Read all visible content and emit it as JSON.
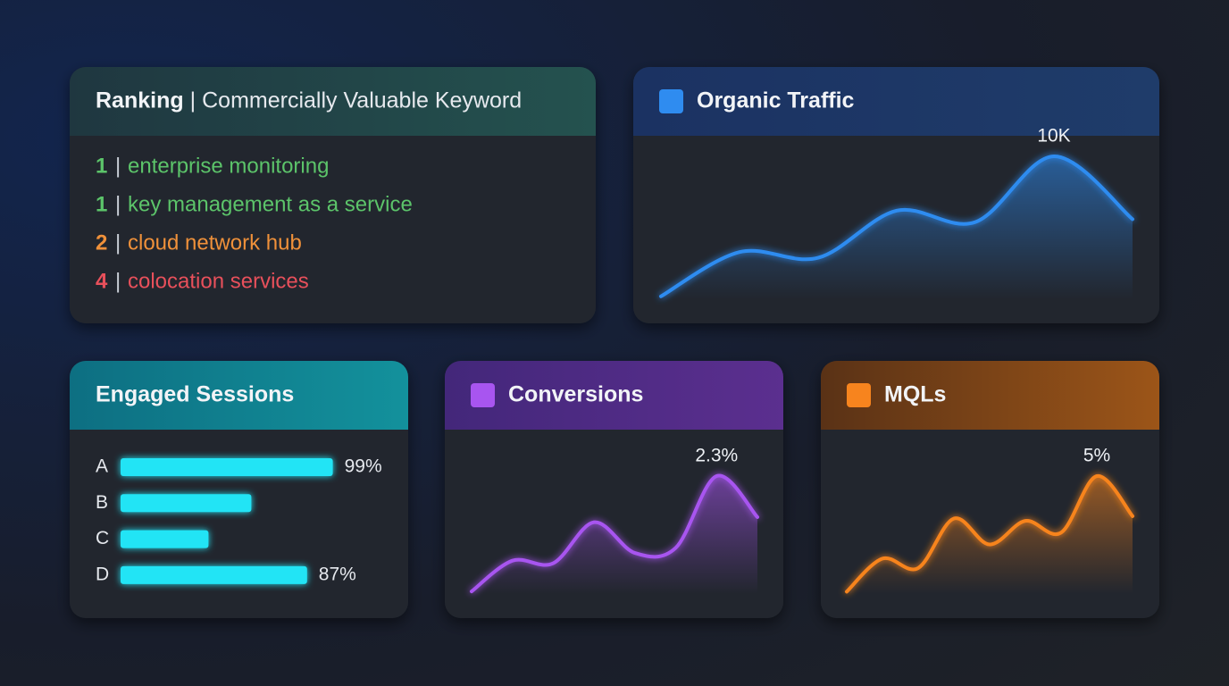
{
  "ranking": {
    "title": "Ranking",
    "separator": "|",
    "subtitle": "Commercially Valuable Keyword",
    "rows": [
      {
        "rank": 1,
        "keyword": "enterprise monitoring",
        "color": "#5cc46a"
      },
      {
        "rank": 1,
        "keyword": "key management as a service",
        "color": "#5cc46a"
      },
      {
        "rank": 2,
        "keyword": "cloud network hub",
        "color": "#f0913a"
      },
      {
        "rank": 4,
        "keyword": "colocation services",
        "color": "#e8505b"
      }
    ]
  },
  "chart_data": [
    {
      "type": "line",
      "title": "Organic Traffic",
      "color": "#2f8cf0",
      "values": [
        200,
        3300,
        2900,
        6200,
        5400,
        10000,
        5600
      ],
      "value_labels": [
        null,
        null,
        null,
        null,
        null,
        "10K",
        null
      ],
      "ylim": [
        0,
        10000
      ]
    },
    {
      "type": "bar",
      "orientation": "horizontal",
      "title": "Engaged Sessions",
      "color": "#22e4f5",
      "categories": [
        "A",
        "B",
        "C",
        "D"
      ],
      "values": [
        99,
        61,
        41,
        87
      ],
      "value_labels": [
        "99%",
        null,
        null,
        "87%"
      ],
      "xlim": [
        0,
        100
      ]
    },
    {
      "type": "line",
      "title": "Conversions",
      "color": "#a855f0",
      "values": [
        0.05,
        0.65,
        0.6,
        1.4,
        0.8,
        0.9,
        2.3,
        1.5
      ],
      "value_labels": [
        null,
        null,
        null,
        null,
        null,
        null,
        "2.3%",
        null
      ],
      "ylim": [
        0,
        2.3
      ]
    },
    {
      "type": "line",
      "title": "MQLs",
      "color": "#f7841e",
      "values": [
        0.1,
        1.5,
        1.1,
        3.2,
        2.1,
        3.1,
        2.6,
        5,
        3.3
      ],
      "value_labels": [
        null,
        null,
        null,
        null,
        null,
        null,
        null,
        "5%",
        null
      ],
      "ylim": [
        0,
        5
      ]
    }
  ]
}
